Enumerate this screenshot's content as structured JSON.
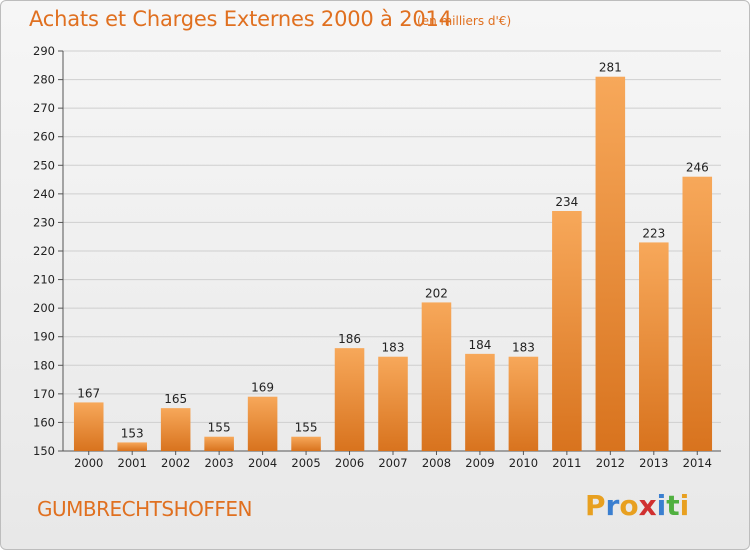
{
  "header": {
    "title": "Achats et Charges Externes 2000 à 2014",
    "subtitle": "(en milliers d'€)"
  },
  "footer": {
    "commune": "GUMBRECHTSHOFFEN",
    "logo_text": "Proxiti",
    "logo_colors": [
      "#e8a020",
      "#3a7fd0",
      "#e8a020",
      "#d03030",
      "#3a7fd0",
      "#50b040",
      "#e8a020"
    ]
  },
  "chart_data": {
    "type": "bar",
    "title": "Achats et Charges Externes 2000 à 2014",
    "subtitle": "(en milliers d'€)",
    "xlabel": "",
    "ylabel": "",
    "categories": [
      "2000",
      "2001",
      "2002",
      "2003",
      "2004",
      "2005",
      "2006",
      "2007",
      "2008",
      "2009",
      "2010",
      "2011",
      "2012",
      "2013",
      "2014"
    ],
    "values": [
      167,
      153,
      165,
      155,
      169,
      155,
      186,
      183,
      202,
      184,
      183,
      234,
      281,
      223,
      246
    ],
    "ylim": [
      150,
      290
    ],
    "yticks": [
      150,
      160,
      170,
      180,
      190,
      200,
      210,
      220,
      230,
      240,
      250,
      260,
      270,
      280,
      290
    ],
    "grid": true,
    "legend": "none",
    "bar_color_light": "#f7a85a",
    "bar_color_dark": "#d8731e"
  }
}
